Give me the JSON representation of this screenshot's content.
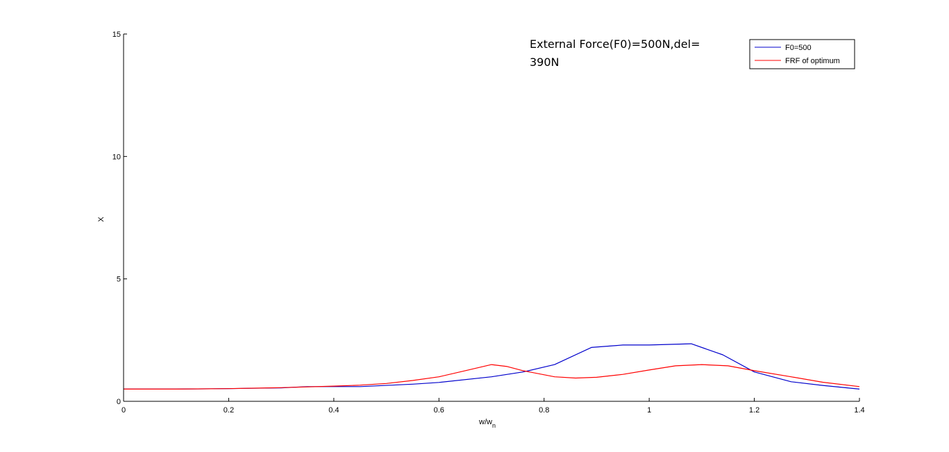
{
  "chart_data": {
    "type": "line",
    "title": "",
    "xlabel": "w/w",
    "xlabel_subscript": "n",
    "ylabel": "X",
    "xlim": [
      0,
      1.4
    ],
    "ylim": [
      0,
      15
    ],
    "xticks": [
      0,
      0.2,
      0.4,
      0.6,
      0.8,
      1,
      1.2,
      1.4
    ],
    "xtick_labels": [
      "0",
      "0.2",
      "0.4",
      "0.6",
      "0.8",
      "1",
      "1.2",
      "1.4"
    ],
    "yticks": [
      0,
      5,
      10,
      15
    ],
    "ytick_labels": [
      "0",
      "5",
      "10",
      "15"
    ],
    "grid": false,
    "legend_position": "top-right",
    "annotation_lines": [
      "External Force(F0)=500N,del=",
      "390N"
    ],
    "series": [
      {
        "name": "F0=500",
        "color": "#0000cc",
        "x": [
          0,
          0.1,
          0.2,
          0.3,
          0.35,
          0.45,
          0.55,
          0.6,
          0.7,
          0.76,
          0.82,
          0.89,
          0.95,
          1.0,
          1.08,
          1.14,
          1.2,
          1.27,
          1.33,
          1.4
        ],
        "y": [
          0.5,
          0.5,
          0.52,
          0.55,
          0.6,
          0.6,
          0.7,
          0.77,
          1.0,
          1.2,
          1.5,
          2.2,
          2.3,
          2.3,
          2.35,
          1.9,
          1.2,
          0.8,
          0.65,
          0.5
        ]
      },
      {
        "name": "FRF of optimum",
        "color": "#ff0000",
        "x": [
          0,
          0.1,
          0.2,
          0.3,
          0.4,
          0.45,
          0.5,
          0.55,
          0.6,
          0.65,
          0.7,
          0.73,
          0.76,
          0.82,
          0.86,
          0.9,
          0.95,
          1.0,
          1.05,
          1.1,
          1.15,
          1.2,
          1.27,
          1.33,
          1.4
        ],
        "y": [
          0.5,
          0.5,
          0.52,
          0.56,
          0.62,
          0.66,
          0.73,
          0.85,
          1.0,
          1.25,
          1.5,
          1.42,
          1.25,
          1.0,
          0.95,
          0.98,
          1.1,
          1.28,
          1.45,
          1.5,
          1.45,
          1.25,
          1.0,
          0.78,
          0.6
        ]
      }
    ]
  }
}
